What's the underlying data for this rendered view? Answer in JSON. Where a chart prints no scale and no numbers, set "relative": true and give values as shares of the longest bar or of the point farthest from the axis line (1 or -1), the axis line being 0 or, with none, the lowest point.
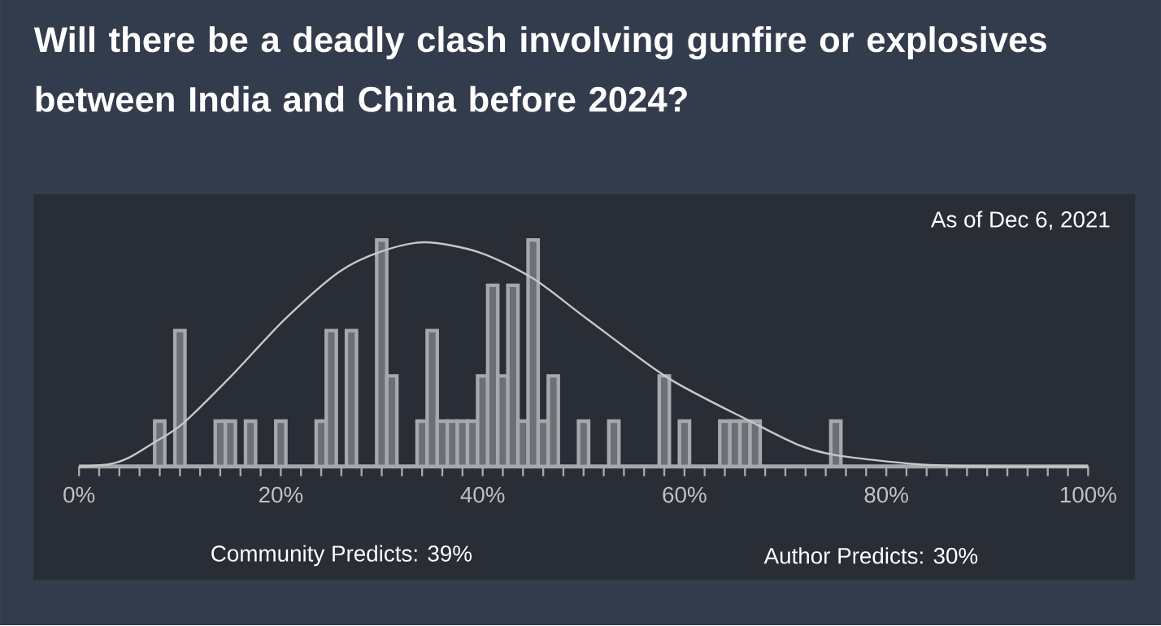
{
  "chart_data": {
    "type": "histogram",
    "title": "Will there be a deadly clash involving gunfire or explosives between India and China before 2024?",
    "relative": true,
    "bins": [
      7.5,
      8.5,
      9.5,
      10.5,
      11.5,
      12.5,
      13.5,
      14.5,
      15.5,
      16.5,
      17.5,
      18.5,
      19.5,
      20.5,
      21.5,
      22.5,
      23.5,
      24.5,
      25.5,
      26.5,
      27.5,
      28.5,
      29.5,
      30.5,
      31.5,
      32.5,
      33.5,
      34.5,
      35.5,
      36.5,
      37.5,
      38.5,
      39.5,
      40.5,
      41.5,
      42.5,
      43.5,
      44.5,
      45.5,
      46.5,
      47.5,
      48.5,
      49.5,
      50.5,
      51.5,
      52.5,
      53.5,
      54.5,
      55.5,
      56.5,
      57.5,
      58.5,
      59.5,
      60.5,
      61.5,
      62.5,
      63.5,
      64.5,
      65.5,
      66.5,
      67.5,
      68.5,
      69.5,
      70.5,
      71.5,
      72.5,
      73.5,
      74.5,
      75.5
    ],
    "values": [
      0.2,
      0,
      0.6,
      0,
      0,
      0,
      0.2,
      0.2,
      0,
      0.2,
      0,
      0,
      0.2,
      0,
      0,
      0,
      0.2,
      0.6,
      0,
      0.6,
      0,
      0,
      1,
      0.4,
      0,
      0,
      0.2,
      0.6,
      0.2,
      0.2,
      0.2,
      0.2,
      0.4,
      0.8,
      0.4,
      0.8,
      0.2,
      1,
      0.2,
      0.4,
      0,
      0,
      0.2,
      0,
      0,
      0.2,
      0,
      0,
      0,
      0,
      0.4,
      0,
      0.2,
      0,
      0,
      0,
      0.2,
      0.2,
      0.2,
      0.2,
      0,
      0,
      0,
      0,
      0,
      0,
      0,
      0.2
    ],
    "color": "#6b6f76",
    "series": [
      {
        "type": "line",
        "color": "#c8c8c8",
        "x": [
          0,
          3,
          5,
          7.6,
          10.3,
          15.1,
          20.4,
          25.8,
          30,
          34.3,
          39.7,
          45,
          50.4,
          58.4,
          66.5,
          71.3,
          75,
          83,
          90,
          100
        ],
        "values": [
          0,
          0.01,
          0.04,
          0.11,
          0.19,
          0.4,
          0.65,
          0.86,
          0.95,
          0.99,
          0.945,
          0.83,
          0.65,
          0.39,
          0.2,
          0.095,
          0.05,
          0.01,
          0,
          0
        ]
      }
    ],
    "xlim": [
      0,
      100
    ],
    "xticks": [
      {
        "value": 0,
        "label": "0%"
      },
      {
        "value": 2,
        "label": null
      },
      {
        "value": 4,
        "label": null
      },
      {
        "value": 6,
        "label": null
      },
      {
        "value": 8,
        "label": null
      },
      {
        "value": 10,
        "label": null
      },
      {
        "value": 12,
        "label": null
      },
      {
        "value": 14,
        "label": null
      },
      {
        "value": 16,
        "label": null
      },
      {
        "value": 18,
        "label": null
      },
      {
        "value": 20,
        "label": "20%"
      },
      {
        "value": 22,
        "label": null
      },
      {
        "value": 24,
        "label": null
      },
      {
        "value": 26,
        "label": null
      },
      {
        "value": 28,
        "label": null
      },
      {
        "value": 30,
        "label": null
      },
      {
        "value": 32,
        "label": null
      },
      {
        "value": 34,
        "label": null
      },
      {
        "value": 36,
        "label": null
      },
      {
        "value": 38,
        "label": null
      },
      {
        "value": 40,
        "label": "40%"
      },
      {
        "value": 42,
        "label": null
      },
      {
        "value": 44,
        "label": null
      },
      {
        "value": 46,
        "label": null
      },
      {
        "value": 48,
        "label": null
      },
      {
        "value": 50,
        "label": null
      },
      {
        "value": 52,
        "label": null
      },
      {
        "value": 54,
        "label": null
      },
      {
        "value": 56,
        "label": null
      },
      {
        "value": 58,
        "label": null
      },
      {
        "value": 60,
        "label": "60%"
      },
      {
        "value": 62,
        "label": null
      },
      {
        "value": 64,
        "label": null
      },
      {
        "value": 66,
        "label": null
      },
      {
        "value": 68,
        "label": null
      },
      {
        "value": 70,
        "label": null
      },
      {
        "value": 72,
        "label": null
      },
      {
        "value": 74,
        "label": null
      },
      {
        "value": 76,
        "label": null
      },
      {
        "value": 78,
        "label": null
      },
      {
        "value": 80,
        "label": "80%"
      },
      {
        "value": 82,
        "label": null
      },
      {
        "value": 84,
        "label": null
      },
      {
        "value": 86,
        "label": null
      },
      {
        "value": 88,
        "label": null
      },
      {
        "value": 90,
        "label": null
      },
      {
        "value": 92,
        "label": null
      },
      {
        "value": 94,
        "label": null
      },
      {
        "value": 96,
        "label": null
      },
      {
        "value": 98,
        "label": null
      },
      {
        "value": 100,
        "label": "100%"
      }
    ],
    "annotations": [
      "As of Dec 6, 2021",
      "Community Predicts: 39%",
      "Author Predicts: 30%"
    ]
  }
}
